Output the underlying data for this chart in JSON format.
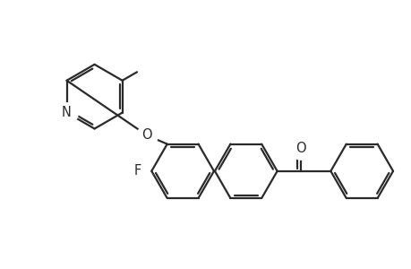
{
  "background_color": "#ffffff",
  "line_color": "#2a2a2a",
  "line_width": 1.6,
  "font_size": 10.5,
  "figsize": [
    4.6,
    3.0
  ],
  "dpi": 100,
  "xlim": [
    0,
    9.2
  ],
  "ylim": [
    0.2,
    6.2
  ]
}
